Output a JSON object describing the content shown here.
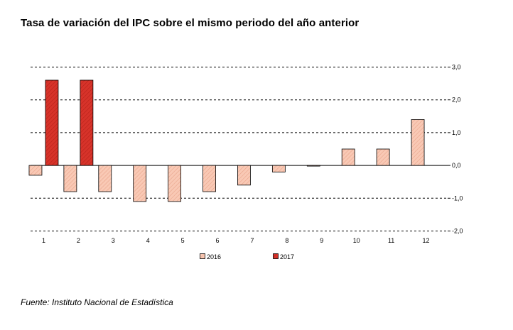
{
  "title": "Tasa de variación del IPC sobre el mismo periodo del año anterior",
  "source": "Fuente: Instituto Nacional de Estadística",
  "colors": {
    "series_2016_fill": "#f9c9b5",
    "series_2016_stroke": "#000000",
    "series_2017_fill": "#d7332a",
    "series_2017_stroke": "#000000",
    "grid": "#000000"
  },
  "chart_data": {
    "type": "bar",
    "title": "Tasa de variación del IPC sobre el mismo periodo del año anterior",
    "categories": [
      "1",
      "2",
      "3",
      "4",
      "5",
      "6",
      "7",
      "8",
      "9",
      "10",
      "11",
      "12"
    ],
    "series": [
      {
        "name": "2016",
        "values": [
          -0.3,
          -0.8,
          -0.8,
          -1.1,
          -1.1,
          -0.8,
          -0.6,
          -0.2,
          0.0,
          0.5,
          0.5,
          1.4
        ]
      },
      {
        "name": "2017",
        "values": [
          2.6,
          2.6,
          null,
          null,
          null,
          null,
          null,
          null,
          null,
          null,
          null,
          null
        ]
      }
    ],
    "ylim": [
      -2.0,
      3.0
    ],
    "yticks": [
      3.0,
      2.0,
      1.0,
      0.0,
      -1.0,
      -2.0
    ],
    "ytick_labels": [
      "3,0",
      "2,0",
      "1,0",
      "0,0",
      "-1,0",
      "-2,0"
    ],
    "y_axis_position": "right",
    "grid": true,
    "legend": {
      "position": "bottom",
      "entries": [
        "2016",
        "2017"
      ]
    }
  }
}
